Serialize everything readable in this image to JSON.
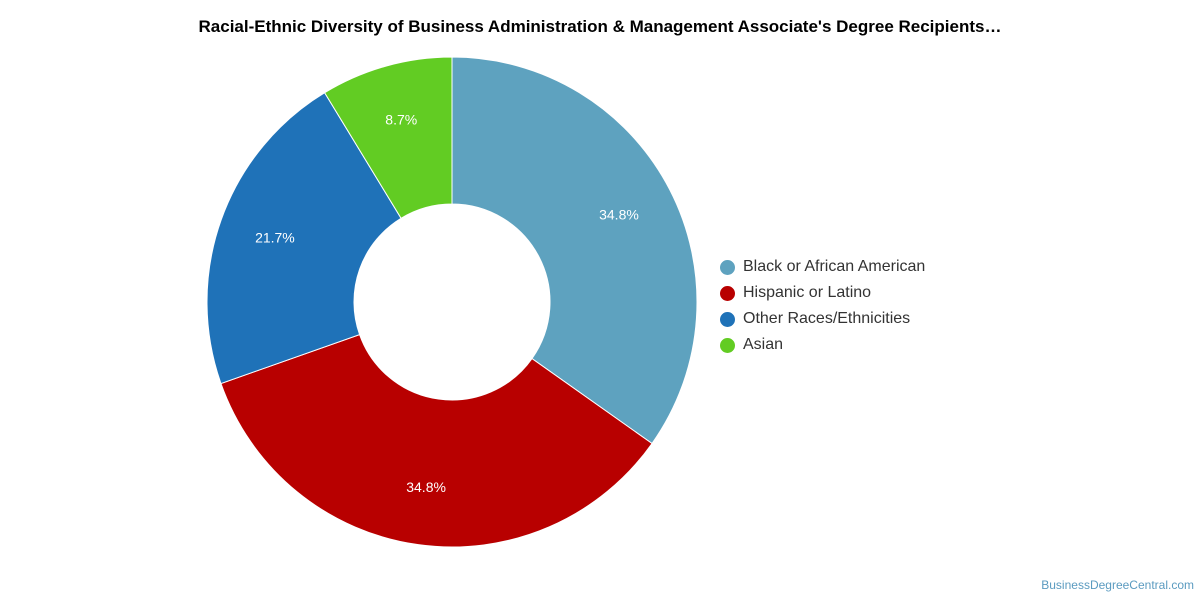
{
  "chart_data": {
    "type": "pie",
    "title": "Racial-Ethnic Diversity of Business Administration & Management Associate's Degree Recipients…",
    "donut": true,
    "slices": [
      {
        "label": "Black or African American",
        "value": 34.8,
        "value_label": "34.8%",
        "color": "#5ea2bf"
      },
      {
        "label": "Hispanic or Latino",
        "value": 34.8,
        "value_label": "34.8%",
        "color": "#b80000"
      },
      {
        "label": "Other Races/Ethnicities",
        "value": 21.7,
        "value_label": "21.7%",
        "color": "#1f72b8"
      },
      {
        "label": "Asian",
        "value": 8.7,
        "value_label": "8.7%",
        "color": "#62cc23"
      }
    ],
    "legend_position": "right"
  },
  "source": "BusinessDegreeCentral.com"
}
